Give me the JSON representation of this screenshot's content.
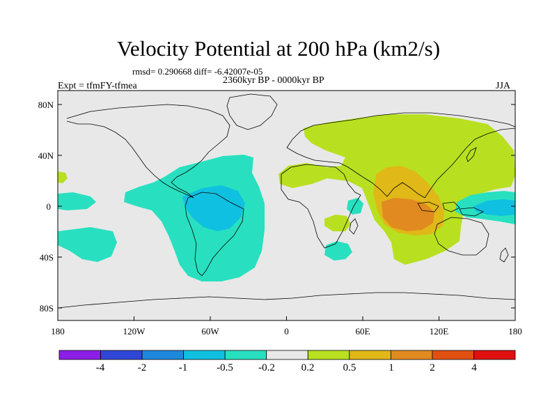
{
  "figure": {
    "title": "Velocity Potential at 200 hPa (km2/s)",
    "stats": "rmsd= 0.290668 diff= -6.42007e-05",
    "period": "2360kyr BP - 0000kyr BP",
    "experiment": "Expt = tfmFY-tfmea",
    "season": "JJA"
  },
  "axes": {
    "lat_ticks": [
      "80N",
      "40N",
      "0",
      "40S",
      "80S"
    ],
    "lon_ticks": [
      "180",
      "120W",
      "60W",
      "0",
      "60E",
      "120E",
      "180"
    ]
  },
  "colorbar": {
    "labels": [
      "-4",
      "-2",
      "-1",
      "-0.5",
      "-0.2",
      "0.2",
      "0.5",
      "1",
      "2",
      "4"
    ],
    "colors": [
      "#8c1ee6",
      "#3046d8",
      "#1e88dc",
      "#10c0e0",
      "#28e0c0",
      "#e8e8e8",
      "#b8e020",
      "#e0b818",
      "#e08a20",
      "#e05010",
      "#e01010"
    ]
  },
  "chart_data": {
    "type": "heatmap",
    "variable": "Velocity Potential at 200 hPa",
    "units": "km2/s",
    "contour_levels": [
      -4,
      -2,
      -1,
      -0.5,
      -0.2,
      0.2,
      0.5,
      1,
      2,
      4
    ],
    "lon_range": [
      -180,
      180
    ],
    "lat_range": [
      -90,
      90
    ],
    "rmsd": 0.290668,
    "diff": -6.42007e-05
  }
}
